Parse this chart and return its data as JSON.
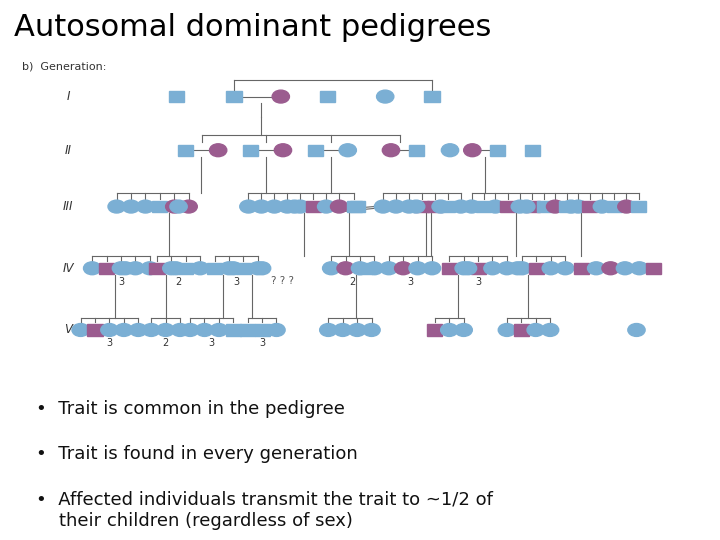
{
  "title": "Autosomal dominant pedigrees",
  "label_b": "b)  Generation:",
  "gen_labels": [
    "I",
    "II",
    "III",
    "IV",
    "V"
  ],
  "bullet_points": [
    "Trait is common in the pedigree",
    "Trait is found in every generation",
    "Affected individuals transmit the trait to ~1/2 of\n    their children (regardless of sex)"
  ],
  "color_affected": "#9b5c8f",
  "color_unaffected": "#7bafd4",
  "line_color": "#666666",
  "bg_color": "#ffffff",
  "gen_ys": {
    "I": 0.82,
    "II": 0.72,
    "III": 0.615,
    "IV": 0.5,
    "V": 0.385
  }
}
